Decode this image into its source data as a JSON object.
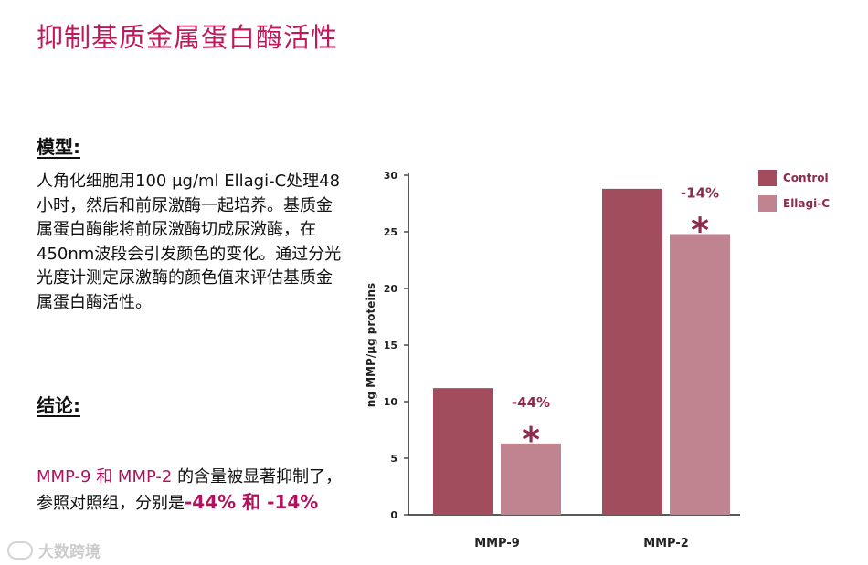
{
  "page": {
    "title": "抑制基质金属蛋白酶活性",
    "model_heading": "模型:",
    "model_text": "人角化细胞用100 μg/ml Ellagi-C处理48小时，然后和前尿激酶一起培养。基质金属蛋白酶能将前尿激酶切成尿激酶，在450nm波段会引发颜色的变化。通过分光光度计测定尿激酶的颜色值来评估基质金属蛋白酶活性。",
    "conclusion_heading": "结论:",
    "conclusion_part1": "MMP-9 和 MMP-2",
    "conclusion_part2": " 的含量被显著抑制了，参照对照组，分别是",
    "conclusion_part3": "-44% 和 -14%",
    "watermark": "大数跨境"
  },
  "colors": {
    "title": "#c2185b",
    "control": "#a14d5e",
    "ellagi": "#c08390",
    "annotation": "#8e2b4c"
  },
  "chart_data": {
    "type": "bar",
    "categories": [
      "MMP-9",
      "MMP-2"
    ],
    "series": [
      {
        "name": "Control",
        "values": [
          11.2,
          28.8
        ]
      },
      {
        "name": "Ellagi-C",
        "values": [
          6.3,
          24.8
        ]
      }
    ],
    "ylabel": "ng MMP/μg proteins",
    "ylim": [
      0,
      30
    ],
    "yticks": [
      0,
      5,
      10,
      15,
      20,
      25,
      30
    ],
    "annotations": [
      {
        "category": "MMP-9",
        "text": "-44%",
        "marker": "*"
      },
      {
        "category": "MMP-2",
        "text": "-14%",
        "marker": "*"
      }
    ],
    "legend": "top-right",
    "grid": false
  }
}
